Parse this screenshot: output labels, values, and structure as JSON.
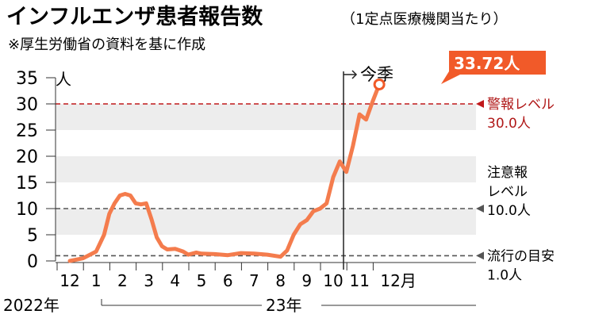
{
  "header": {
    "title": "インフルエンザ患者報告数",
    "subtitle": "（1定点医療機関当たり）",
    "source": "※厚生労働省の資料を基に作成"
  },
  "colors": {
    "line": "#f47c4d",
    "warning": "#c0191b",
    "band": "#ededed",
    "callout": "#f15a29"
  },
  "chart_data": {
    "type": "line",
    "title": "インフルエンザ患者報告数",
    "ylabel": "人",
    "ylim": [
      0,
      35
    ],
    "yticks": [
      "0",
      "5",
      "10",
      "15",
      "20",
      "25",
      "30",
      "35"
    ],
    "grid": "alternating horizontal bands",
    "month_labels": [
      "12",
      "1",
      "2",
      "3",
      "4",
      "5",
      "6",
      "7",
      "8",
      "9",
      "10",
      "11",
      "12月"
    ],
    "year_labels": [
      "2022年",
      "23年"
    ],
    "now_marker": "今季",
    "latest_label": "33.72人",
    "series": [
      {
        "x": [
          0.0,
          0.5,
          1.0,
          1.3,
          1.5,
          1.7,
          1.9,
          2.1,
          2.3,
          2.5,
          2.7,
          2.9,
          3.1,
          3.3,
          3.5,
          3.7,
          4.0,
          4.3,
          4.5,
          4.8,
          5.0,
          5.5,
          6.0,
          6.5,
          7.0,
          7.5,
          8.0,
          8.25,
          8.5,
          8.75,
          9.0,
          9.25,
          9.5,
          9.75,
          10.0,
          10.25,
          10.5,
          10.75,
          11.0,
          11.25,
          11.5,
          11.75
        ],
        "values": [
          0.0,
          0.5,
          1.8,
          5.0,
          9.0,
          11.0,
          12.5,
          12.8,
          12.5,
          11.0,
          10.8,
          11.0,
          8.0,
          4.5,
          2.8,
          2.2,
          2.3,
          1.8,
          1.2,
          1.6,
          1.4,
          1.3,
          1.1,
          1.5,
          1.4,
          1.2,
          0.8,
          2.0,
          5.0,
          7.0,
          7.8,
          9.5,
          10.0,
          11.0,
          16.0,
          19.0,
          17.0,
          22.0,
          28.0,
          27.0,
          30.5,
          33.72
        ]
      }
    ],
    "reference_lines": [
      {
        "value": 30.0,
        "label": [
          "警報レベル",
          "30.0人"
        ],
        "color": "#c0191b"
      },
      {
        "value": 10.0,
        "label": [
          "注意報",
          "レベル",
          "10.0人"
        ],
        "color": "#555555"
      },
      {
        "value": 1.0,
        "label": [
          "流行の目安",
          "1.0人"
        ],
        "color": "#555555"
      }
    ]
  }
}
